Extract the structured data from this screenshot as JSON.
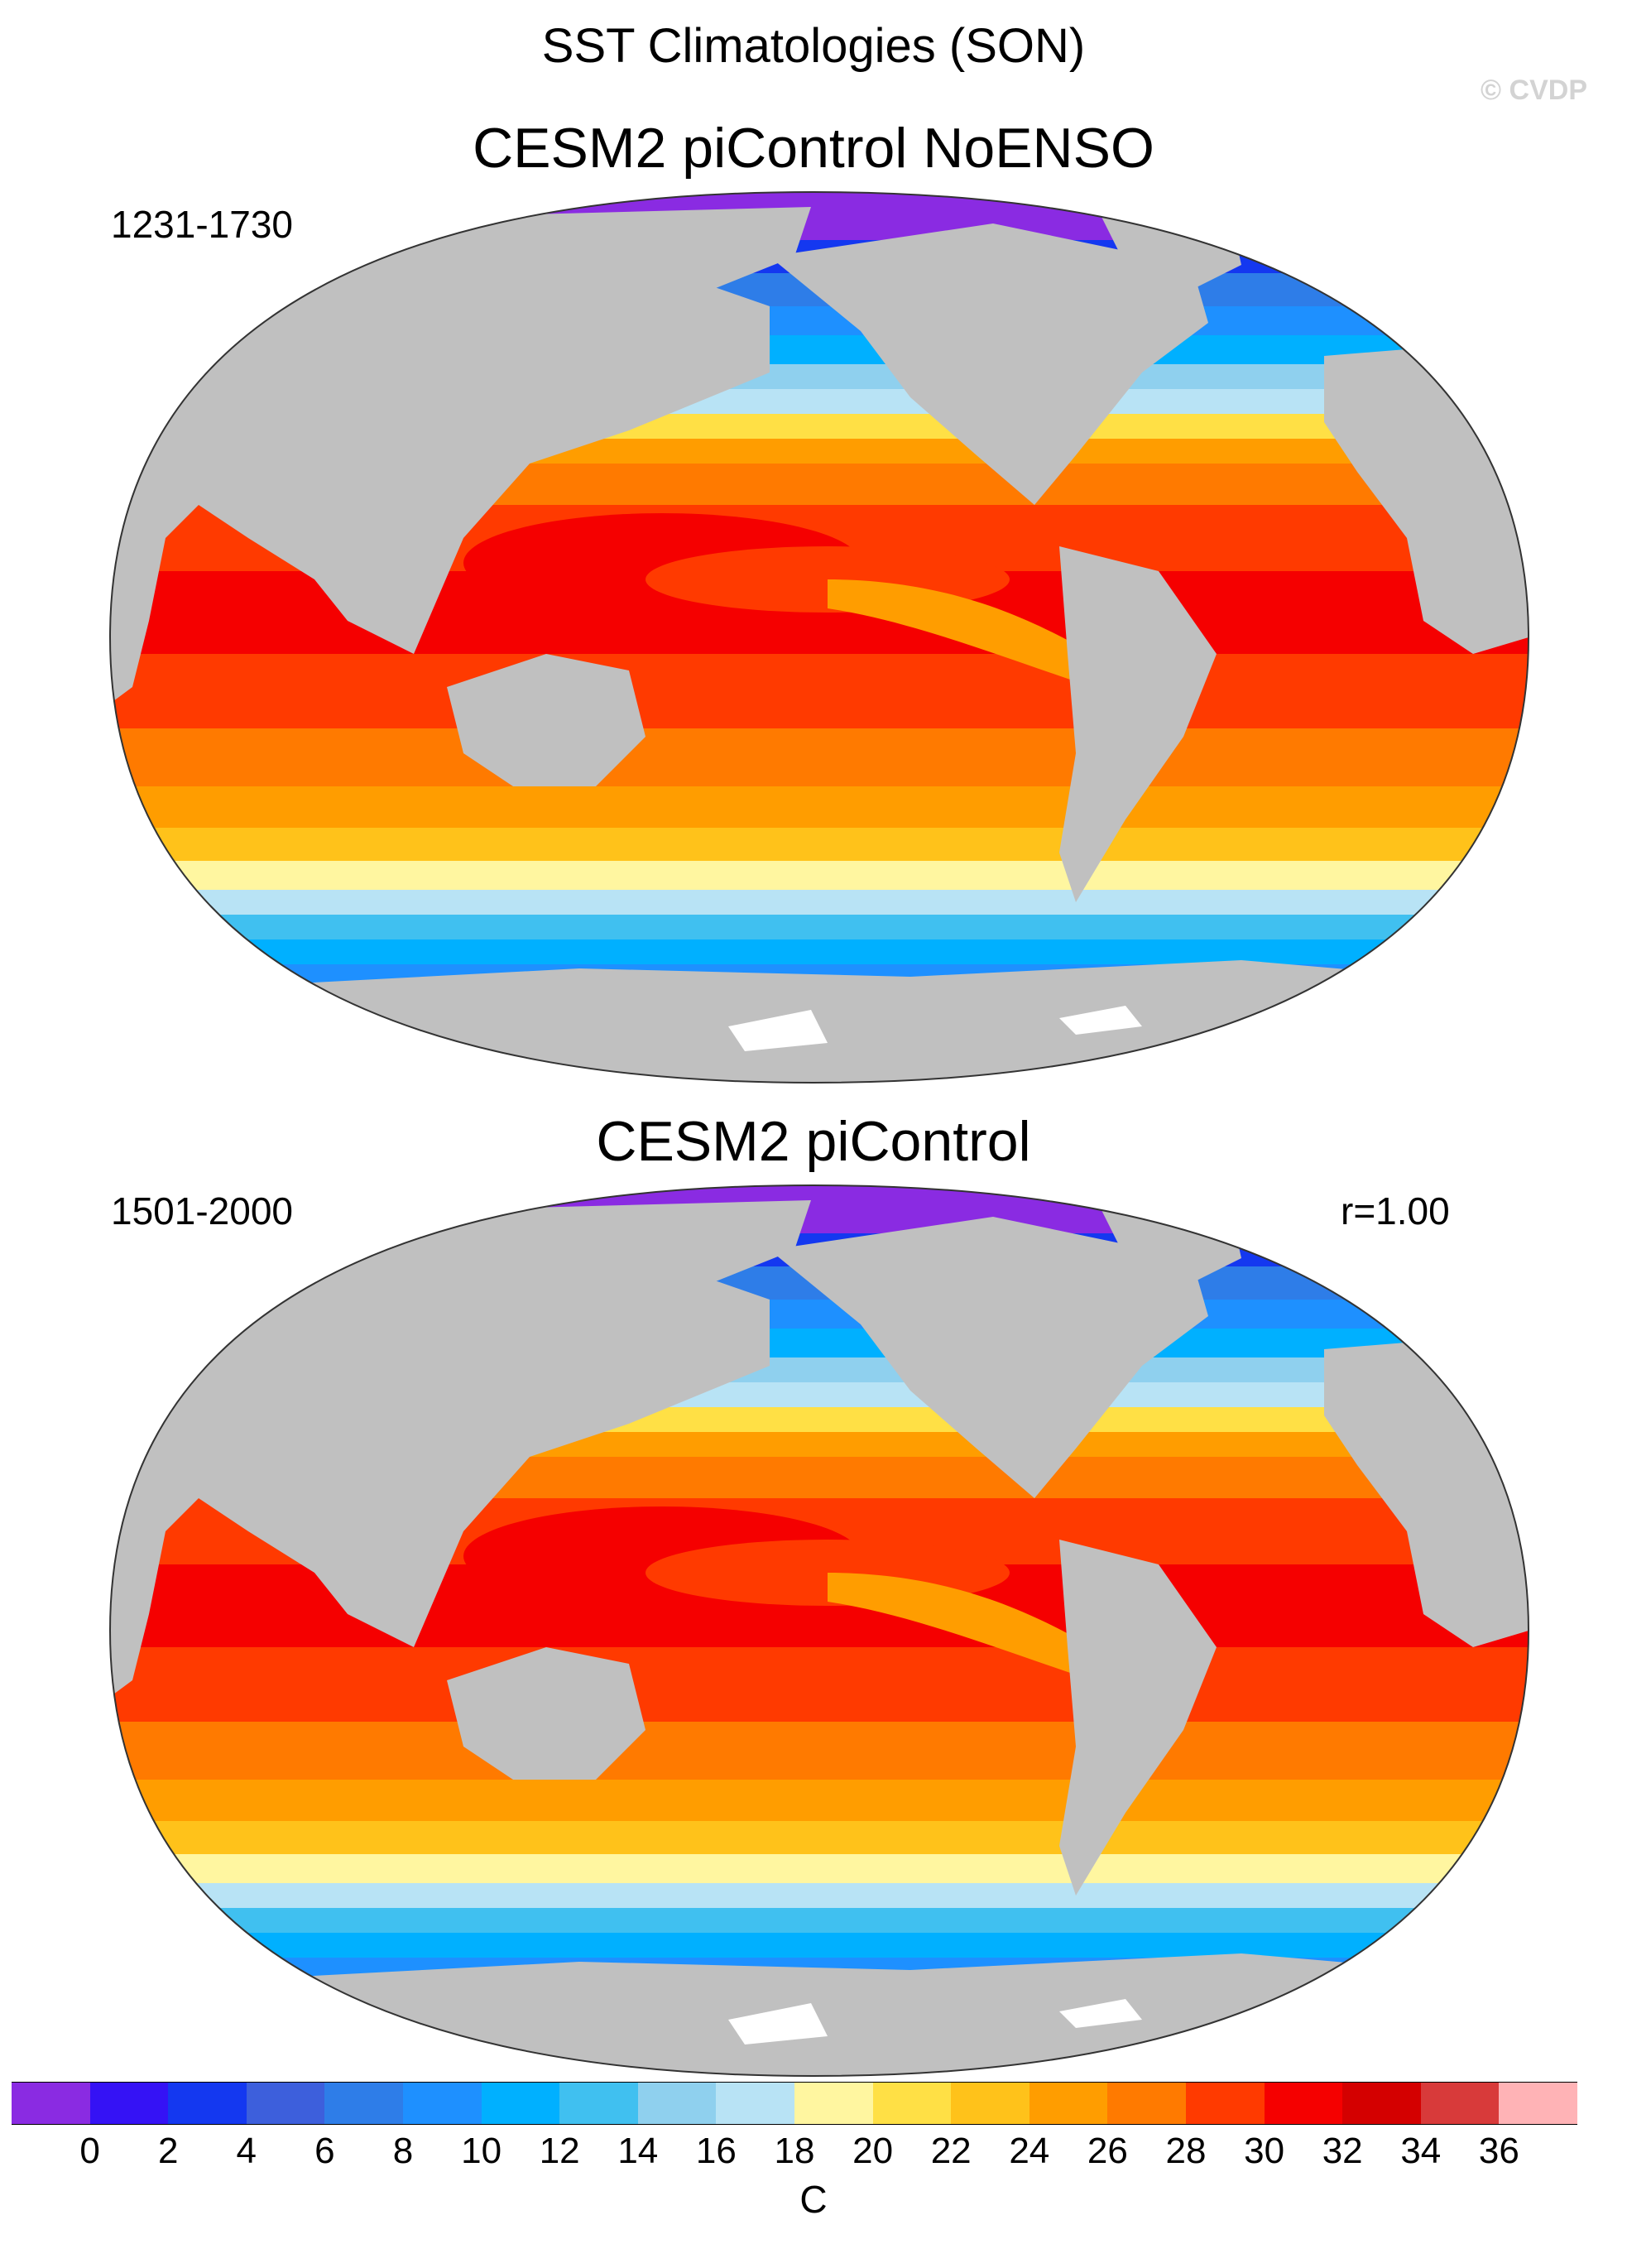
{
  "figure": {
    "title": "SST Climatologies (SON)",
    "watermark": "© CVDP"
  },
  "panels": [
    {
      "title": "CESM2 piControl NoENSO",
      "period": "1231-1730",
      "stat": ""
    },
    {
      "title": "CESM2 piControl",
      "period": "1501-2000",
      "stat": "r=1.00"
    }
  ],
  "colorbar": {
    "units": "C",
    "labels": [
      "0",
      "2",
      "4",
      "6",
      "8",
      "10",
      "12",
      "14",
      "16",
      "18",
      "20",
      "22",
      "24",
      "26",
      "28",
      "30",
      "32",
      "34",
      "36"
    ],
    "colors": [
      "#8a2be2",
      "#3512f5",
      "#1438f0",
      "#3d5fdc",
      "#2e7de8",
      "#1e90ff",
      "#00b0ff",
      "#40c0f0",
      "#8fd0ee",
      "#b8e3f5",
      "#fff6a0",
      "#ffe045",
      "#ffc21a",
      "#ff9d00",
      "#ff7a00",
      "#ff3a00",
      "#f50000",
      "#d40000",
      "#d83a3a",
      "#ffb3b6"
    ]
  },
  "map_colors": {
    "land": "#c0c0c0",
    "ice": "#ffffff",
    "ocean_outline": "#333333"
  }
}
